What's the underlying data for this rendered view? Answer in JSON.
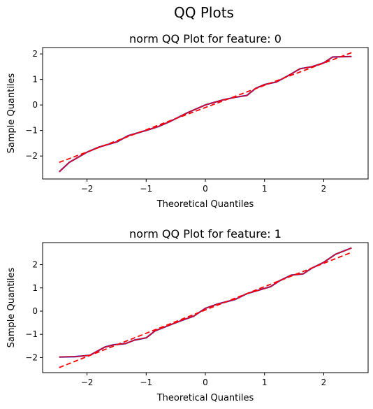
{
  "figure": {
    "title": "QQ Plots"
  },
  "colors": {
    "sample_line": "#2020cc",
    "overlay_line": "#ff0000",
    "reference_line": "#ff0000",
    "axis": "#000000"
  },
  "chart_data": [
    {
      "type": "line",
      "title": "norm QQ Plot for feature: 0",
      "xlabel": "Theoretical Quantiles",
      "ylabel": "Sample Quantiles",
      "xlim": [
        -2.75,
        2.75
      ],
      "ylim": [
        -2.9,
        2.25
      ],
      "xticks": [
        -2,
        -1,
        0,
        1,
        2
      ],
      "xtick_labels": [
        "−2",
        "−1",
        "0",
        "1",
        "2"
      ],
      "yticks": [
        -2,
        -1,
        0,
        1,
        2
      ],
      "ytick_labels": [
        "−2",
        "−1",
        "0",
        "1",
        "2"
      ],
      "grid": false,
      "series": [
        {
          "style": "solid",
          "x": [
            -2.47,
            -2.3,
            -2.0,
            -1.8,
            -1.5,
            -1.3,
            -1.0,
            -0.8,
            -0.6,
            -0.3,
            0.0,
            0.3,
            0.5,
            0.7,
            0.85,
            1.0,
            1.2,
            1.4,
            1.6,
            1.8,
            2.0,
            2.15,
            2.47
          ],
          "y": [
            -2.62,
            -2.25,
            -1.85,
            -1.65,
            -1.45,
            -1.2,
            -1.0,
            -0.85,
            -0.65,
            -0.3,
            0.0,
            0.2,
            0.3,
            0.37,
            0.65,
            0.8,
            0.9,
            1.15,
            1.42,
            1.5,
            1.65,
            1.88,
            1.9
          ]
        }
      ],
      "reference_line": {
        "style": "dashed",
        "x": [
          -2.47,
          2.47
        ],
        "y": [
          -2.25,
          2.05
        ]
      }
    },
    {
      "type": "line",
      "title": "norm QQ Plot for feature: 1",
      "xlabel": "Theoretical Quantiles",
      "ylabel": "Sample Quantiles",
      "xlim": [
        -2.75,
        2.75
      ],
      "ylim": [
        -2.65,
        2.95
      ],
      "xticks": [
        -2,
        -1,
        0,
        1,
        2
      ],
      "xtick_labels": [
        "−2",
        "−1",
        "0",
        "1",
        "2"
      ],
      "yticks": [
        -2,
        -1,
        0,
        1,
        2
      ],
      "ytick_labels": [
        "−2",
        "−1",
        "0",
        "1",
        "2"
      ],
      "grid": false,
      "series": [
        {
          "style": "solid",
          "x": [
            -2.47,
            -2.2,
            -1.95,
            -1.7,
            -1.55,
            -1.35,
            -1.2,
            -1.0,
            -0.85,
            -0.6,
            -0.4,
            -0.2,
            0.0,
            0.2,
            0.5,
            0.7,
            0.9,
            1.1,
            1.25,
            1.45,
            1.65,
            1.8,
            2.0,
            2.2,
            2.47
          ],
          "y": [
            -1.98,
            -1.96,
            -1.9,
            -1.55,
            -1.45,
            -1.4,
            -1.25,
            -1.15,
            -0.85,
            -0.6,
            -0.4,
            -0.22,
            0.12,
            0.3,
            0.5,
            0.75,
            0.9,
            1.05,
            1.3,
            1.55,
            1.6,
            1.85,
            2.1,
            2.45,
            2.72
          ]
        }
      ],
      "reference_line": {
        "style": "dashed",
        "x": [
          -2.47,
          2.47
        ],
        "y": [
          -2.43,
          2.53
        ]
      }
    }
  ]
}
